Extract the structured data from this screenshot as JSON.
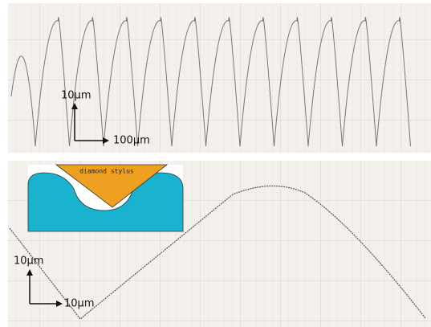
{
  "top_panel": {
    "scale_vertical": "10μm",
    "scale_horizontal": "100μm"
  },
  "bottom_panel": {
    "inset_label": "diamond stylus",
    "scale_vertical": "10μm",
    "scale_horizontal": "10μm"
  }
}
